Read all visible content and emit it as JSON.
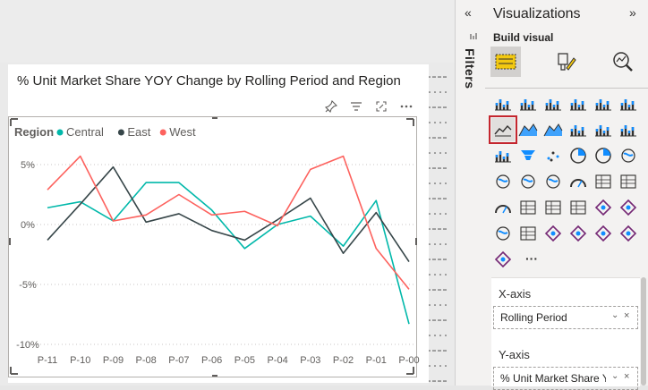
{
  "visual": {
    "title": "% Unit Market Share YOY Change by Rolling Period and Region",
    "header_icons": [
      "pin-icon",
      "filter-icon",
      "focus-mode-icon",
      "more-options-icon"
    ]
  },
  "chart_data": {
    "type": "line",
    "title": "% Unit Market Share YOY Change by Rolling Period and Region",
    "legend_title": "Region",
    "legend_position": "top-left",
    "x": [
      "P-11",
      "P-10",
      "P-09",
      "P-08",
      "P-07",
      "P-06",
      "P-05",
      "P-04",
      "P-03",
      "P-02",
      "P-01",
      "P-00"
    ],
    "y_ticks": [
      "5%",
      "0%",
      "-5%",
      "-10%"
    ],
    "ylim": [
      -10,
      5
    ],
    "grid": true,
    "series": [
      {
        "name": "Central",
        "color": "#01b8aa",
        "values": [
          1.4,
          1.9,
          0.3,
          3.5,
          3.5,
          1.2,
          -2.0,
          0.0,
          0.7,
          -1.8,
          2.0,
          -8.3
        ]
      },
      {
        "name": "East",
        "color": "#374649",
        "values": [
          -1.3,
          1.7,
          4.8,
          0.2,
          0.9,
          -0.5,
          -1.3,
          0.4,
          2.2,
          -2.4,
          1.0,
          -3.1
        ]
      },
      {
        "name": "West",
        "color": "#fd625e",
        "values": [
          2.9,
          5.7,
          0.3,
          0.8,
          2.5,
          0.8,
          1.1,
          -0.1,
          4.6,
          5.7,
          -2.0,
          -5.4
        ]
      }
    ]
  },
  "filters": {
    "label": "Filters",
    "collapse_glyph": "«"
  },
  "visualizations": {
    "title": "Visualizations",
    "collapse_glyph": "»",
    "build_visual_label": "Build visual",
    "modes": [
      "build-visual-icon",
      "format-visual-icon",
      "analytics-icon"
    ],
    "gallery_selected": "line-chart-icon",
    "more_label": "···",
    "x_axis": {
      "label": "X-axis",
      "field": "Rolling Period"
    },
    "y_axis": {
      "label": "Y-axis",
      "field": "% Unit Market Share YC"
    },
    "pill_chevron": "⌄",
    "pill_remove": "×"
  }
}
